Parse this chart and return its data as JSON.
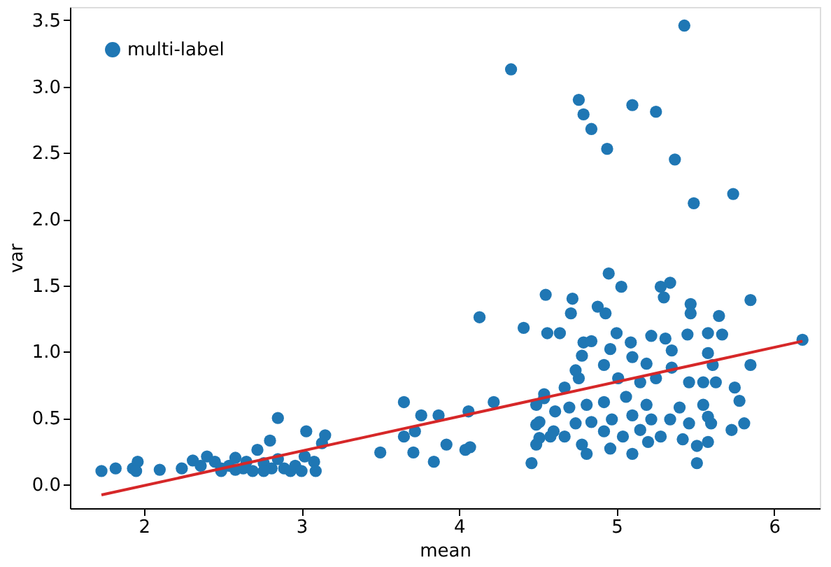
{
  "chart_data": {
    "type": "scatter",
    "xlabel": "mean",
    "ylabel": "var",
    "xlim": [
      1.53,
      6.29
    ],
    "ylim": [
      -0.18,
      3.6
    ],
    "xticks": [
      2,
      3,
      4,
      5,
      6
    ],
    "yticks": [
      {
        "value": 0,
        "label": "0.0"
      },
      0.5,
      {
        "value": 1,
        "label": "1.0"
      },
      1.5,
      {
        "value": 2,
        "label": "2.0"
      },
      2.5,
      {
        "value": 3,
        "label": "3.0"
      },
      3.5
    ],
    "grid": false,
    "legend": "top left",
    "series": [
      {
        "name": "multi-label",
        "marker": "circle",
        "color": "#1f77b4",
        "x": [
          5.43,
          4.33,
          4.76,
          4.79,
          4.84,
          4.94,
          5.1,
          5.25,
          5.37,
          5.49,
          5.74,
          1.73,
          1.82,
          1.93,
          1.96,
          1.95,
          2.1,
          2.24,
          2.31,
          2.36,
          2.4,
          2.45,
          2.49,
          2.54,
          2.58,
          2.63,
          2.65,
          2.69,
          2.72,
          2.76,
          2.81,
          2.85,
          2.8,
          2.85,
          2.89,
          2.93,
          2.96,
          3.03,
          3.08,
          3.13,
          3.09,
          3.15,
          3.02,
          2.58,
          2.49,
          2.76,
          3.0,
          3.65,
          3.5,
          3.76,
          3.87,
          4.06,
          4.22,
          3.65,
          3.72,
          3.71,
          3.84,
          3.92,
          4.04,
          4.07,
          4.13,
          4.41,
          4.46,
          4.49,
          4.51,
          4.54,
          4.56,
          4.64,
          4.61,
          4.67,
          4.58,
          4.55,
          4.95,
          5.03,
          4.72,
          4.71,
          4.88,
          4.93,
          5.0,
          4.79,
          4.84,
          4.78,
          4.96,
          5.09,
          5.28,
          5.34,
          5.3,
          5.47,
          5.47,
          5.65,
          5.85,
          5.22,
          5.31,
          5.45,
          5.58,
          5.67,
          5.35,
          5.58,
          5.61,
          5.85,
          6.18,
          4.92,
          5.1,
          5.19,
          5.35,
          5.01,
          4.76,
          4.54,
          4.49,
          4.74,
          5.15,
          5.25,
          5.46,
          5.55,
          5.63,
          5.75,
          5.78,
          4.7,
          4.81,
          4.92,
          5.06,
          5.19,
          5.4,
          5.55,
          5.58,
          4.51,
          4.6,
          4.74,
          4.84,
          4.97,
          5.1,
          5.22,
          5.34,
          5.46,
          5.6,
          5.73,
          5.81,
          4.49,
          4.67,
          4.78,
          4.81,
          4.96,
          5.1,
          5.2,
          5.28,
          5.42,
          5.51,
          5.58,
          5.51,
          4.92,
          5.04,
          5.15
        ],
        "values": [
          3.46,
          3.13,
          2.9,
          2.79,
          2.68,
          2.53,
          2.86,
          2.81,
          2.45,
          2.12,
          2.19,
          0.1,
          0.12,
          0.12,
          0.17,
          0.1,
          0.11,
          0.12,
          0.18,
          0.14,
          0.21,
          0.17,
          0.12,
          0.14,
          0.2,
          0.12,
          0.17,
          0.1,
          0.26,
          0.16,
          0.12,
          0.5,
          0.33,
          0.19,
          0.12,
          0.1,
          0.14,
          0.4,
          0.17,
          0.31,
          0.1,
          0.37,
          0.21,
          0.11,
          0.1,
          0.1,
          0.1,
          0.62,
          0.24,
          0.52,
          0.52,
          0.55,
          0.62,
          0.36,
          0.4,
          0.24,
          0.17,
          0.3,
          0.26,
          0.28,
          1.26,
          1.18,
          0.16,
          0.45,
          0.35,
          0.65,
          1.14,
          1.14,
          0.55,
          0.73,
          0.36,
          1.43,
          1.59,
          1.49,
          1.4,
          1.29,
          1.34,
          1.29,
          1.14,
          1.07,
          1.08,
          0.97,
          1.02,
          1.07,
          1.49,
          1.52,
          1.41,
          1.36,
          1.29,
          1.27,
          1.39,
          1.12,
          1.1,
          1.13,
          1.14,
          1.13,
          1.01,
          0.99,
          0.9,
          0.9,
          1.09,
          0.9,
          0.96,
          0.91,
          0.88,
          0.8,
          0.8,
          0.68,
          0.6,
          0.86,
          0.77,
          0.8,
          0.77,
          0.77,
          0.77,
          0.73,
          0.63,
          0.58,
          0.6,
          0.62,
          0.66,
          0.6,
          0.58,
          0.6,
          0.51,
          0.47,
          0.4,
          0.46,
          0.47,
          0.49,
          0.52,
          0.49,
          0.49,
          0.46,
          0.46,
          0.41,
          0.46,
          0.3,
          0.36,
          0.3,
          0.23,
          0.27,
          0.23,
          0.32,
          0.36,
          0.34,
          0.29,
          0.32,
          0.16,
          0.4,
          0.36,
          0.41
        ]
      },
      {
        "type": "line",
        "color": "#d62728",
        "line_style": "solid",
        "x": [
          1.73,
          6.18
        ],
        "values": [
          -0.08,
          1.08
        ]
      }
    ]
  }
}
